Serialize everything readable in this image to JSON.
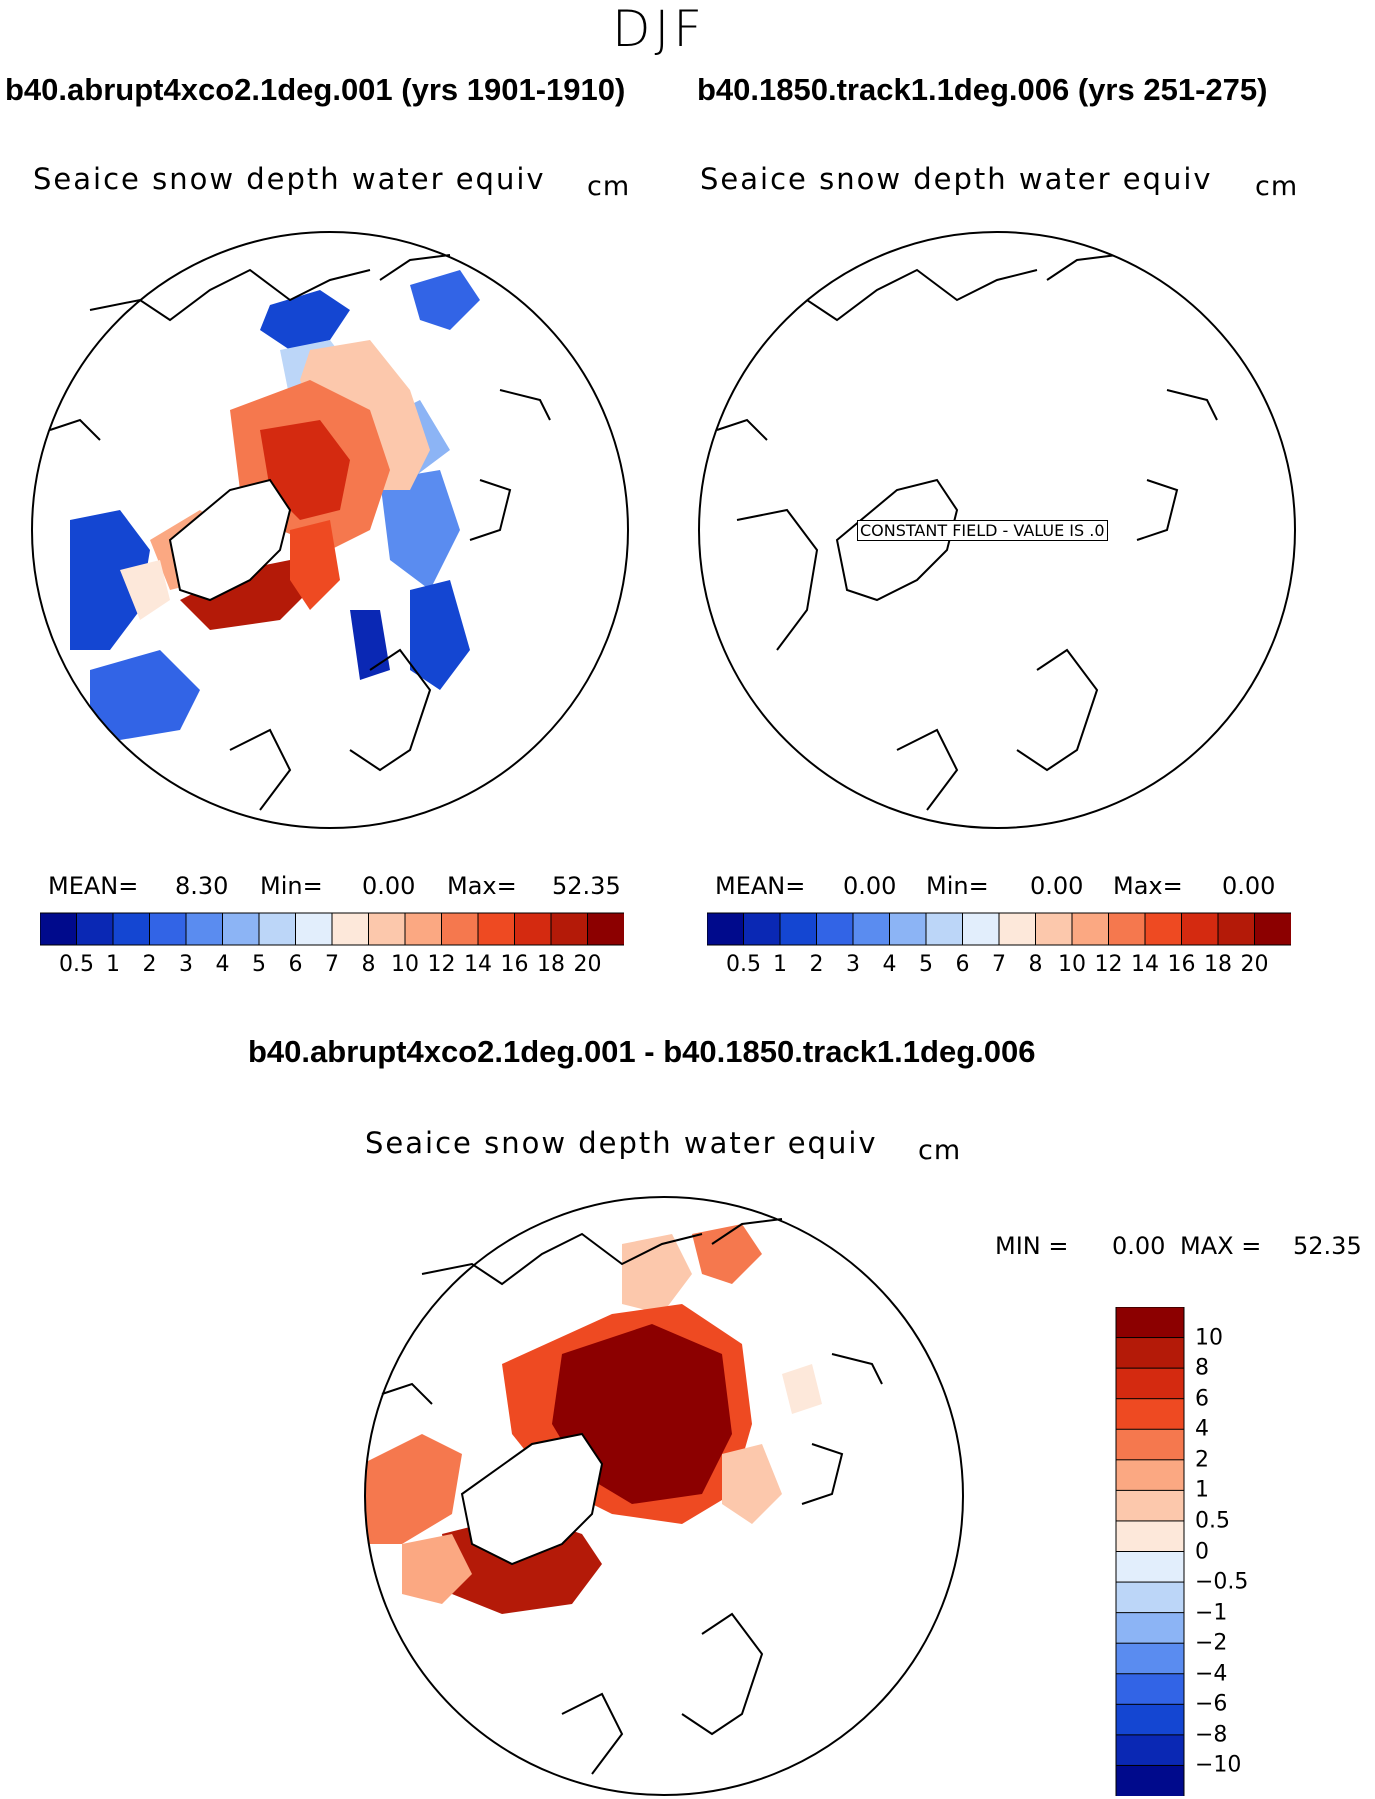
{
  "season": "DJF",
  "colors": {
    "seq_scale": [
      "#000a8c",
      "#0a28b4",
      "#1446d2",
      "#3264e6",
      "#5a8cf0",
      "#8cb4f5",
      "#bcd6f8",
      "#e2eefc",
      "#fde8da",
      "#fcc8ac",
      "#fba882",
      "#f5784e",
      "#ee4a22",
      "#d42a10",
      "#b41a08",
      "#8c0000"
    ],
    "diff_scale": [
      "#000a8c",
      "#0a28b4",
      "#1446d2",
      "#3264e6",
      "#5a8cf0",
      "#8cb4f5",
      "#bcd6f8",
      "#e2eefc",
      "#fde8da",
      "#fcc8ac",
      "#fba882",
      "#f5784e",
      "#ee4a22",
      "#d42a10",
      "#b41a08",
      "#8c0000"
    ]
  },
  "chart_data": [
    {
      "type": "heatmap",
      "panel": "left",
      "title": "b40.abrupt4xco2.1deg.001 (yrs 1901-1910)",
      "subtitle": "Seaice snow depth water equiv",
      "units": "cm",
      "stats": {
        "mean_label": "MEAN=",
        "mean": "8.30",
        "min_label": "Min=",
        "min": "0.00",
        "max_label": "Max=",
        "max": "52.35"
      },
      "colorbar_ticks": [
        "0.5",
        "1",
        "2",
        "3",
        "4",
        "5",
        "6",
        "7",
        "8",
        "10",
        "12",
        "14",
        "16",
        "18",
        "20"
      ],
      "projection": "north polar stereographic",
      "description_regions": [
        "central arctic 10-20 cm",
        "marginal seas 0.5-6 cm"
      ]
    },
    {
      "type": "heatmap",
      "panel": "right",
      "title": "b40.1850.track1.1deg.006 (yrs 251-275)",
      "subtitle": "Seaice snow depth water equiv",
      "units": "cm",
      "annotation": "CONSTANT FIELD - VALUE IS .0",
      "stats": {
        "mean_label": "MEAN=",
        "mean": "0.00",
        "min_label": "Min=",
        "min": "0.00",
        "max_label": "Max=",
        "max": "0.00"
      },
      "colorbar_ticks": [
        "0.5",
        "1",
        "2",
        "3",
        "4",
        "5",
        "6",
        "7",
        "8",
        "10",
        "12",
        "14",
        "16",
        "18",
        "20"
      ],
      "projection": "north polar stereographic"
    },
    {
      "type": "heatmap",
      "panel": "difference",
      "title": "b40.abrupt4xco2.1deg.001 - b40.1850.track1.1deg.006",
      "subtitle": "Seaice snow depth water equiv",
      "units": "cm",
      "stats": {
        "min_label": "MIN =",
        "min": "0.00",
        "max_label": "MAX =",
        "max": "52.35"
      },
      "colorbar_ticks": [
        "10",
        "8",
        "6",
        "4",
        "2",
        "1",
        "0.5",
        "0",
        "−0.5",
        "−1",
        "−2",
        "−4",
        "−6",
        "−8",
        "−10"
      ],
      "projection": "north polar stereographic"
    }
  ]
}
